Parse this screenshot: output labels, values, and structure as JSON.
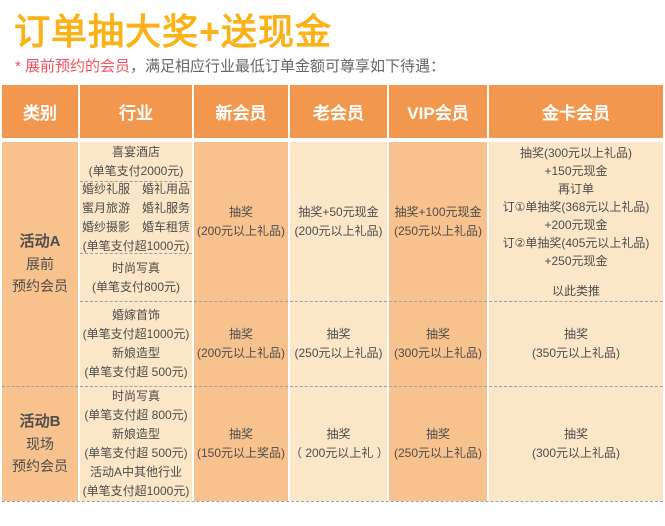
{
  "header": {
    "title": "订单抽大奖+送现金",
    "note": {
      "highlight": "* 展前预约的会员",
      "rest": "，满足相应行业最低订单金额可尊享如下待遇："
    }
  },
  "colors": {
    "accent": "#FBB118",
    "note_red": "#F2535F",
    "text_gray": "#666666",
    "header_bg": "#F2984E",
    "col_dark": "#F7C28E",
    "col_light": "#FCE6C8",
    "cell_text": "#4D4D4D",
    "dash": "#99A1A9"
  },
  "table": {
    "columns": [
      "类别",
      "行业",
      "新会员",
      "老会员",
      "VIP会员",
      "金卡会员"
    ],
    "sectionA": {
      "category": {
        "name": "活动A",
        "line2": "展前",
        "line3": "预约会员"
      },
      "industry_banquet": [
        "喜宴酒店",
        "(单笔支付2000元)"
      ],
      "industry_wedding": [
        "婚纱礼服　婚礼用品",
        "蜜月旅游　婚礼服务",
        "婚纱摄影　婚车租赁",
        "(单笔支付超1000元)"
      ],
      "industry_photo": [
        "时尚写真",
        "(单笔支付800元)"
      ],
      "industry_jewelry": [
        "婚嫁首饰",
        "(单笔支付超1000元)",
        "新娘造型",
        "(单笔支付超 500元)"
      ],
      "row1": {
        "new": [
          "抽奖",
          "(200元以上礼品)"
        ],
        "old": [
          "抽奖+50元现金",
          "(200元以上礼品)"
        ],
        "vip": [
          "抽奖+100元现金",
          "(250元以上礼品)"
        ],
        "gold": [
          "抽奖(300元以上礼品)",
          "+150元现金",
          "再订单",
          "订①单抽奖(368元以上礼品)",
          "+200元现金",
          "订②单抽奖(405元以上礼品)",
          "+250元现金"
        ],
        "gold_etc": "以此类推"
      },
      "row2": {
        "new": [
          "抽奖",
          "(200元以上礼品)"
        ],
        "old": [
          "抽奖",
          "(250元以上礼品)"
        ],
        "vip": [
          "抽奖",
          "(300元以上礼品)"
        ],
        "gold": [
          "抽奖",
          "(350元以上礼品)"
        ]
      }
    },
    "sectionB": {
      "category": {
        "name": "活动B",
        "line2": "现场",
        "line3": "预约会员"
      },
      "industry": [
        "时尚写真",
        "(单笔支付超 800元)",
        "新娘造型",
        "(单笔支付超 500元)",
        "活动A中其他行业",
        "(单笔支付超1000元)"
      ],
      "row": {
        "new": [
          "抽奖",
          "(150元以上奖品)"
        ],
        "old": [
          "抽奖",
          "（ 200元以上礼 ）"
        ],
        "vip": [
          "抽奖",
          "(250元以上礼品)"
        ],
        "gold": [
          "抽奖",
          "(300元以上礼品)"
        ]
      }
    }
  }
}
